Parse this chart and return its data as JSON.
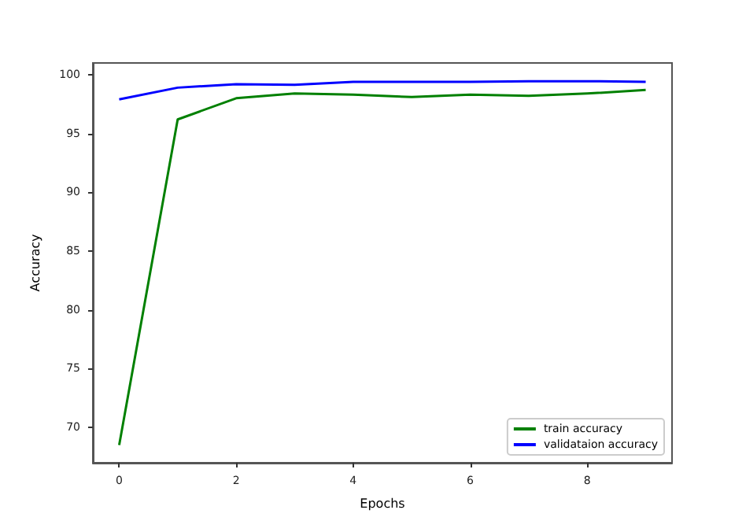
{
  "chart_data": {
    "type": "line",
    "xlabel": "Epochs",
    "ylabel": "Accuracy",
    "x": [
      0,
      1,
      2,
      3,
      4,
      5,
      6,
      7,
      8,
      9
    ],
    "series": [
      {
        "name": "train accuracy",
        "color": "#008000",
        "values": [
          68.5,
          96.2,
          98.0,
          98.4,
          98.3,
          98.1,
          98.3,
          98.2,
          98.4,
          98.7
        ]
      },
      {
        "name": "validataion accuracy",
        "color": "#0000ff",
        "values": [
          97.9,
          98.9,
          99.2,
          99.15,
          99.4,
          99.4,
          99.4,
          99.45,
          99.45,
          99.4
        ]
      }
    ],
    "xlim": [
      -0.45,
      9.45
    ],
    "xticks": [
      0,
      2,
      4,
      6,
      8
    ],
    "ylim": [
      67,
      101
    ],
    "yticks": [
      70,
      75,
      80,
      85,
      90,
      95,
      100
    ],
    "grid": false,
    "legend": "bottom right",
    "marker": "none",
    "line_style": "solid"
  }
}
